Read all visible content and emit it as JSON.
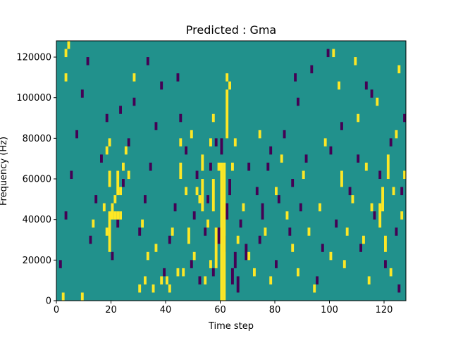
{
  "chart_data": {
    "type": "heatmap",
    "title": "Predicted : Gma",
    "xlabel": "Time step",
    "ylabel": "Frequency (Hz)",
    "xlim": [
      0,
      128
    ],
    "ylim": [
      0,
      128000
    ],
    "x_ticks": [
      0,
      20,
      40,
      60,
      80,
      100,
      120
    ],
    "y_ticks": [
      0,
      20000,
      40000,
      60000,
      80000,
      100000,
      120000
    ],
    "x_tick_labels": [
      "0",
      "20",
      "40",
      "60",
      "80",
      "100",
      "120"
    ],
    "y_tick_labels": [
      "0",
      "20000",
      "40000",
      "60000",
      "80000",
      "100000",
      "120000"
    ],
    "grid": false,
    "legend": "none",
    "colors": {
      "background": "#21918c",
      "high": "#fde725",
      "low": "#440154"
    },
    "cell_height_hz": 4000,
    "high_cells": [
      [
        60,
        0,
        17
      ],
      [
        61,
        0,
        17
      ],
      [
        59,
        16,
        17
      ],
      [
        62,
        20,
        26
      ],
      [
        58,
        4,
        9
      ],
      [
        57,
        11,
        15
      ],
      [
        53,
        11,
        15
      ],
      [
        19,
        6,
        11
      ],
      [
        20,
        10,
        12
      ],
      [
        21,
        10,
        11
      ],
      [
        22,
        10,
        11
      ],
      [
        23,
        10,
        11
      ],
      [
        18,
        8,
        9
      ],
      [
        19,
        14,
        16
      ],
      [
        22,
        13,
        15
      ],
      [
        23,
        13,
        14
      ],
      [
        2,
        0,
        1
      ],
      [
        3,
        30,
        31
      ],
      [
        4,
        31,
        32
      ],
      [
        3,
        27,
        28
      ],
      [
        9,
        0,
        1
      ],
      [
        13,
        9,
        10
      ],
      [
        17,
        11,
        12
      ],
      [
        18,
        18,
        19
      ],
      [
        19,
        19,
        20
      ],
      [
        21,
        12,
        13
      ],
      [
        22,
        15,
        16
      ],
      [
        24,
        16,
        17
      ],
      [
        25,
        18,
        19
      ],
      [
        26,
        15,
        16
      ],
      [
        28,
        27,
        28
      ],
      [
        30,
        1,
        2
      ],
      [
        31,
        9,
        10
      ],
      [
        32,
        2,
        3
      ],
      [
        33,
        5,
        6
      ],
      [
        35,
        1,
        2
      ],
      [
        36,
        6,
        7
      ],
      [
        38,
        2,
        3
      ],
      [
        40,
        2,
        3
      ],
      [
        41,
        1,
        2
      ],
      [
        42,
        8,
        9
      ],
      [
        44,
        3,
        4
      ],
      [
        45,
        15,
        17
      ],
      [
        45,
        19,
        20
      ],
      [
        46,
        3,
        4
      ],
      [
        47,
        13,
        14
      ],
      [
        48,
        7,
        9
      ],
      [
        49,
        20,
        21
      ],
      [
        50,
        5,
        6
      ],
      [
        51,
        13,
        14
      ],
      [
        52,
        12,
        13
      ],
      [
        53,
        16,
        18
      ],
      [
        54,
        2,
        3
      ],
      [
        55,
        9,
        10
      ],
      [
        56,
        4,
        5
      ],
      [
        57,
        22,
        23
      ],
      [
        56,
        19,
        20
      ],
      [
        62,
        27,
        28
      ],
      [
        63,
        26,
        27
      ],
      [
        64,
        16,
        17
      ],
      [
        65,
        19,
        20
      ],
      [
        66,
        7,
        8
      ],
      [
        68,
        11,
        12
      ],
      [
        70,
        5,
        6
      ],
      [
        72,
        3,
        4
      ],
      [
        74,
        20,
        21
      ],
      [
        76,
        8,
        9
      ],
      [
        78,
        2,
        3
      ],
      [
        80,
        13,
        14
      ],
      [
        82,
        17,
        18
      ],
      [
        84,
        10,
        11
      ],
      [
        86,
        6,
        7
      ],
      [
        88,
        3,
        4
      ],
      [
        90,
        15,
        16
      ],
      [
        92,
        8,
        9
      ],
      [
        94,
        1,
        2
      ],
      [
        96,
        11,
        12
      ],
      [
        98,
        19,
        20
      ],
      [
        100,
        5,
        6
      ],
      [
        101,
        30,
        31
      ],
      [
        103,
        26,
        27
      ],
      [
        104,
        14,
        16
      ],
      [
        105,
        4,
        5
      ],
      [
        106,
        8,
        9
      ],
      [
        108,
        12,
        13
      ],
      [
        109,
        29,
        30
      ],
      [
        110,
        22,
        23
      ],
      [
        112,
        7,
        8
      ],
      [
        113,
        16,
        17
      ],
      [
        114,
        2,
        3
      ],
      [
        115,
        11,
        12
      ],
      [
        117,
        24,
        25
      ],
      [
        118,
        9,
        12
      ],
      [
        119,
        11,
        14
      ],
      [
        120,
        6,
        8
      ],
      [
        121,
        15,
        18
      ],
      [
        122,
        3,
        4
      ],
      [
        123,
        13,
        14
      ],
      [
        124,
        20,
        21
      ],
      [
        125,
        28,
        29
      ],
      [
        126,
        10,
        11
      ],
      [
        127,
        15,
        16
      ]
    ],
    "low_cells": [
      [
        59,
        7,
        9
      ],
      [
        60,
        18,
        20
      ],
      [
        61,
        6,
        8
      ],
      [
        62,
        10,
        12
      ],
      [
        63,
        13,
        15
      ],
      [
        64,
        2,
        4
      ],
      [
        65,
        4,
        6
      ],
      [
        66,
        1,
        3
      ],
      [
        67,
        9,
        10
      ],
      [
        69,
        5,
        7
      ],
      [
        73,
        13,
        14
      ],
      [
        74,
        7,
        8
      ],
      [
        75,
        10,
        12
      ],
      [
        77,
        16,
        17
      ],
      [
        78,
        18,
        19
      ],
      [
        80,
        4,
        5
      ],
      [
        81,
        12,
        13
      ],
      [
        83,
        20,
        21
      ],
      [
        85,
        8,
        9
      ],
      [
        86,
        14,
        15
      ],
      [
        88,
        24,
        25
      ],
      [
        89,
        11,
        12
      ],
      [
        91,
        17,
        18
      ],
      [
        93,
        28,
        29
      ],
      [
        95,
        2,
        3
      ],
      [
        97,
        6,
        7
      ],
      [
        99,
        30,
        31
      ],
      [
        102,
        9,
        10
      ],
      [
        104,
        21,
        22
      ],
      [
        107,
        13,
        14
      ],
      [
        110,
        17,
        18
      ],
      [
        111,
        6,
        7
      ],
      [
        113,
        26,
        27
      ],
      [
        116,
        10,
        11
      ],
      [
        118,
        15,
        16
      ],
      [
        120,
        4,
        5
      ],
      [
        122,
        19,
        20
      ],
      [
        124,
        8,
        9
      ],
      [
        126,
        13,
        14
      ],
      [
        127,
        22,
        23
      ],
      [
        1,
        4,
        5
      ],
      [
        3,
        10,
        11
      ],
      [
        5,
        15,
        16
      ],
      [
        7,
        20,
        21
      ],
      [
        9,
        25,
        26
      ],
      [
        11,
        29,
        30
      ],
      [
        12,
        7,
        8
      ],
      [
        14,
        12,
        13
      ],
      [
        16,
        17,
        18
      ],
      [
        18,
        22,
        23
      ],
      [
        20,
        5,
        6
      ],
      [
        22,
        9,
        10
      ],
      [
        24,
        14,
        15
      ],
      [
        26,
        19,
        20
      ],
      [
        28,
        24,
        25
      ],
      [
        30,
        8,
        9
      ],
      [
        32,
        12,
        13
      ],
      [
        34,
        16,
        17
      ],
      [
        36,
        21,
        22
      ],
      [
        38,
        26,
        27
      ],
      [
        39,
        3,
        4
      ],
      [
        41,
        7,
        8
      ],
      [
        43,
        11,
        12
      ],
      [
        45,
        22,
        23
      ],
      [
        47,
        18,
        19
      ],
      [
        49,
        4,
        5
      ],
      [
        50,
        10,
        11
      ],
      [
        51,
        15,
        16
      ],
      [
        52,
        2,
        3
      ],
      [
        54,
        8,
        9
      ],
      [
        55,
        12,
        13
      ],
      [
        56,
        16,
        17
      ],
      [
        57,
        3,
        4
      ],
      [
        58,
        19,
        20
      ],
      [
        23,
        23,
        24
      ],
      [
        33,
        29,
        30
      ],
      [
        44,
        27,
        28
      ],
      [
        70,
        16,
        17
      ],
      [
        87,
        27,
        28
      ],
      [
        100,
        18,
        19
      ],
      [
        115,
        25,
        26
      ],
      [
        125,
        1,
        2
      ]
    ]
  }
}
